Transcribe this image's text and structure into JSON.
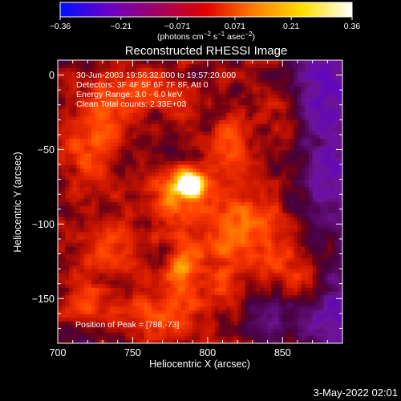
{
  "chart_data": {
    "type": "heatmap",
    "title": "Reconstructed RHESSI Image",
    "xlabel": "Heliocentric X (arcsec)",
    "ylabel": "Heliocentric Y (arcsec)",
    "xlim": [
      700,
      890
    ],
    "ylim": [
      -180,
      10
    ],
    "x_ticks": [
      700,
      750,
      800,
      850
    ],
    "y_ticks": [
      0,
      -50,
      -100,
      -150
    ],
    "x_tick_labels": [
      "700",
      "750",
      "800",
      "850"
    ],
    "y_tick_labels": [
      "0",
      "−50",
      "−100",
      "−150"
    ],
    "colorbar": {
      "range": [
        -0.36,
        0.36
      ],
      "ticks": [
        -0.36,
        -0.21,
        -0.071,
        0.071,
        0.21,
        0.36
      ],
      "tick_labels": [
        "−0.36",
        "−0.21",
        "−0.071",
        "0.071",
        "0.21",
        "0.36"
      ],
      "label_parts": [
        "(photons cm",
        "−2",
        " s",
        "−1",
        " asec",
        "−2",
        ")"
      ],
      "colors": [
        "#0010ff",
        "#6a00c8",
        "#a00060",
        "#e00000",
        "#ff8000",
        "#ffe000",
        "#ffffff"
      ]
    },
    "info_lines": [
      "30-Jun-2003 19:56:32.000 to 19:57:20.000",
      "Detectors: 3F 4F 5F 6F 7F 8F, Att 0",
      "Energy Range: 3.0 - 6.0 keV",
      "Clean    Total counts: 2.33E+03"
    ],
    "peak_label": "Position of Peak = [788,-73]",
    "peak": {
      "x": 788,
      "y": -73,
      "value": 0.36
    },
    "bright_features": [
      {
        "x": 788,
        "y": -73,
        "value": 0.36,
        "sx": 6,
        "sy": 6
      },
      {
        "x": 780,
        "y": -82,
        "value": 0.16,
        "sx": 14,
        "sy": 14
      },
      {
        "x": 784,
        "y": -130,
        "value": 0.17,
        "sx": 9,
        "sy": 14
      },
      {
        "x": 770,
        "y": -160,
        "value": 0.13,
        "sx": 22,
        "sy": 12
      },
      {
        "x": 730,
        "y": -30,
        "value": 0.12,
        "sx": 14,
        "sy": 12
      },
      {
        "x": 720,
        "y": -55,
        "value": 0.11,
        "sx": 12,
        "sy": 16
      },
      {
        "x": 760,
        "y": -10,
        "value": 0.11,
        "sx": 22,
        "sy": 10
      },
      {
        "x": 815,
        "y": -45,
        "value": 0.12,
        "sx": 12,
        "sy": 16
      },
      {
        "x": 825,
        "y": -95,
        "value": 0.13,
        "sx": 14,
        "sy": 16
      },
      {
        "x": 808,
        "y": -120,
        "value": 0.12,
        "sx": 10,
        "sy": 22
      },
      {
        "x": 845,
        "y": -120,
        "value": 0.1,
        "sx": 14,
        "sy": 14
      },
      {
        "x": 870,
        "y": -135,
        "value": 0.09,
        "sx": 10,
        "sy": 12
      },
      {
        "x": 850,
        "y": -20,
        "value": 0.09,
        "sx": 10,
        "sy": 12
      },
      {
        "x": 735,
        "y": -115,
        "value": 0.11,
        "sx": 16,
        "sy": 16
      },
      {
        "x": 720,
        "y": -155,
        "value": 0.09,
        "sx": 12,
        "sy": 12
      },
      {
        "x": 872,
        "y": -5,
        "value": -0.12,
        "sx": 16,
        "sy": 18
      },
      {
        "x": 880,
        "y": -60,
        "value": -0.1,
        "sx": 10,
        "sy": 22
      },
      {
        "x": 885,
        "y": -160,
        "value": -0.1,
        "sx": 12,
        "sy": 18
      },
      {
        "x": 845,
        "y": -165,
        "value": -0.08,
        "sx": 14,
        "sy": 10
      },
      {
        "x": 712,
        "y": -175,
        "value": -0.06,
        "sx": 12,
        "sy": 8
      }
    ]
  },
  "footer": {
    "timestamp": "3-May-2022 02:01"
  }
}
